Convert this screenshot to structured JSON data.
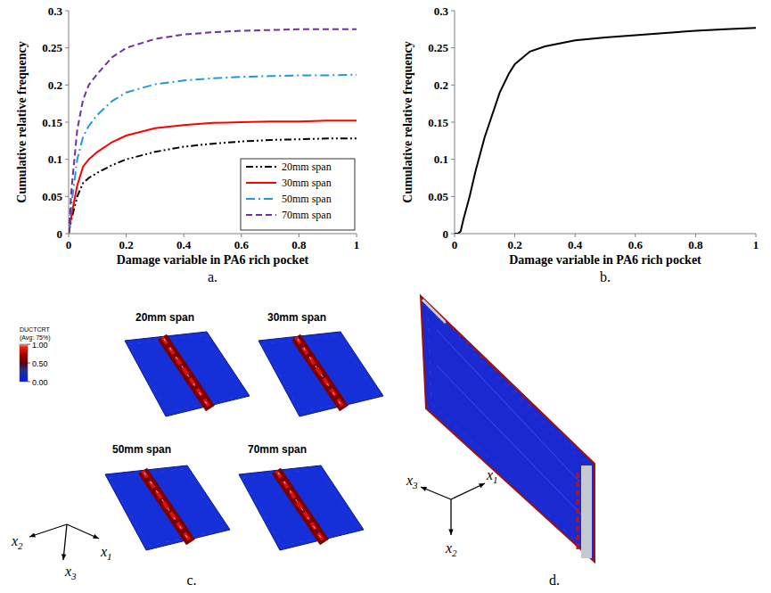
{
  "chart_data": [
    {
      "type": "line",
      "panel_label": "a.",
      "x_label": "Damage variable in PA6 rich pocket",
      "y_label": "Cumulative relative frequency",
      "x": [
        0,
        0.01,
        0.02,
        0.03,
        0.05,
        0.07,
        0.1,
        0.15,
        0.2,
        0.3,
        0.4,
        0.5,
        0.6,
        0.7,
        0.8,
        0.9,
        1
      ],
      "series": [
        {
          "name": "20mm span",
          "color": "#000000",
          "line_style": "dash-dot-dot",
          "values": [
            0,
            0.02,
            0.035,
            0.05,
            0.068,
            0.075,
            0.082,
            0.092,
            0.1,
            0.11,
            0.117,
            0.121,
            0.124,
            0.126,
            0.127,
            0.128,
            0.128
          ]
        },
        {
          "name": "30mm span",
          "color": "#ff0000",
          "line_style": "solid",
          "values": [
            0,
            0.025,
            0.045,
            0.065,
            0.09,
            0.1,
            0.11,
            0.123,
            0.132,
            0.142,
            0.146,
            0.149,
            0.15,
            0.151,
            0.151,
            0.152,
            0.152
          ]
        },
        {
          "name": "50mm span",
          "color": "#1f9ad8",
          "line_style": "dash-dot",
          "values": [
            0,
            0.04,
            0.07,
            0.1,
            0.13,
            0.145,
            0.16,
            0.178,
            0.19,
            0.201,
            0.206,
            0.209,
            0.211,
            0.212,
            0.213,
            0.213,
            0.214
          ]
        },
        {
          "name": "70mm span",
          "color": "#7030a0",
          "line_style": "dashed",
          "values": [
            0,
            0.06,
            0.1,
            0.14,
            0.18,
            0.2,
            0.215,
            0.237,
            0.25,
            0.262,
            0.268,
            0.271,
            0.273,
            0.274,
            0.275,
            0.275,
            0.275
          ]
        }
      ],
      "xlim": [
        0,
        1
      ],
      "xticks": [
        0,
        0.2,
        0.4,
        0.6,
        0.8,
        1
      ],
      "ylim": [
        0,
        0.3
      ],
      "yticks": [
        0,
        0.05,
        0.1,
        0.15,
        0.2,
        0.25,
        0.3
      ],
      "legend": "lower right",
      "grid": false
    },
    {
      "type": "line",
      "panel_label": "b.",
      "x_label": "Damage variable in PA6 rich pocket",
      "y_label": "Cumulative relative frequency",
      "x": [
        0,
        0.01,
        0.02,
        0.03,
        0.05,
        0.07,
        0.1,
        0.15,
        0.18,
        0.2,
        0.25,
        0.3,
        0.4,
        0.5,
        0.6,
        0.7,
        0.8,
        0.9,
        1
      ],
      "series": [
        {
          "color": "#000000",
          "line_style": "solid",
          "values": [
            0,
            0,
            0.003,
            0.02,
            0.05,
            0.085,
            0.13,
            0.19,
            0.215,
            0.228,
            0.245,
            0.252,
            0.26,
            0.264,
            0.267,
            0.27,
            0.273,
            0.275,
            0.277
          ]
        }
      ],
      "xlim": [
        0,
        1
      ],
      "xticks": [
        0,
        0.2,
        0.4,
        0.6,
        0.8,
        1
      ],
      "ylim": [
        0,
        0.3
      ],
      "yticks": [
        0,
        0.05,
        0.1,
        0.15,
        0.2,
        0.25,
        0.3
      ],
      "grid": false
    }
  ],
  "contour_panels": {
    "c": {
      "panel_label": "c.",
      "plots": [
        "20mm span",
        "30mm span",
        "50mm span",
        "70mm span"
      ],
      "colorbar": {
        "title": "DUCTCRT",
        "subtitle": "(Avg: 75%)",
        "range": [
          0,
          1
        ],
        "ticks": [
          {
            "value": 1,
            "label": "1.00"
          },
          {
            "value": 0.5,
            "label": "0.50"
          },
          {
            "value": 0,
            "label": "0.00"
          }
        ]
      },
      "axes": [
        {
          "symbol": "x",
          "index": "2"
        },
        {
          "symbol": "x",
          "index": "3"
        },
        {
          "symbol": "x",
          "index": "1"
        }
      ]
    },
    "d": {
      "panel_label": "d.",
      "axes": [
        {
          "symbol": "x",
          "index": "3"
        },
        {
          "symbol": "x",
          "index": "2"
        },
        {
          "symbol": "x",
          "index": "1"
        }
      ]
    }
  }
}
